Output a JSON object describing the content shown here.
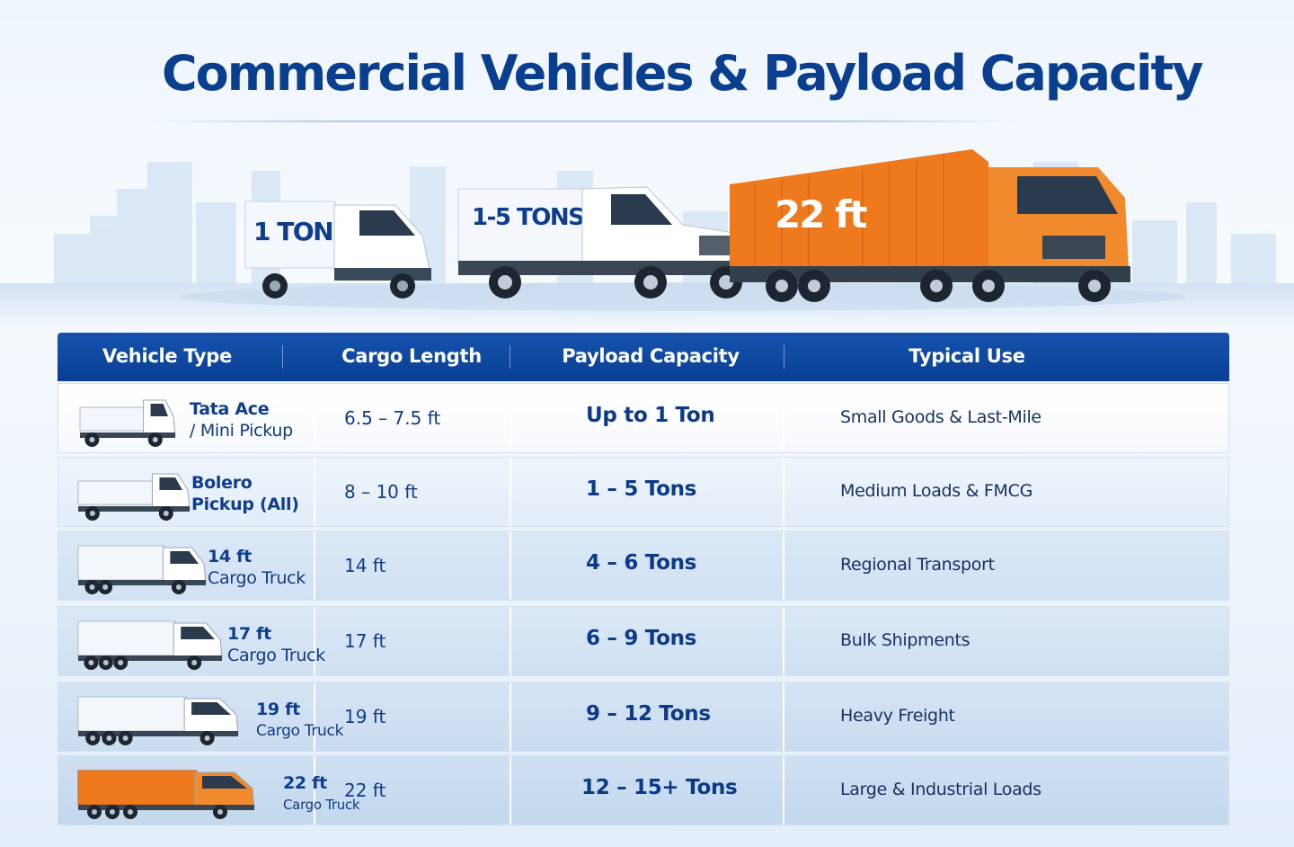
{
  "title": "Commercial Vehicles & Payload Capacity",
  "hero": {
    "badges": [
      "1 TON",
      "1-5 TONS",
      "22 ft"
    ]
  },
  "colors": {
    "brand_blue": "#0a3f8f",
    "truck_orange": "#ef7a1e",
    "row_tint": "#d6e5f5"
  },
  "table": {
    "headers": [
      "Vehicle Type",
      "Cargo Length",
      "Payload Capacity",
      "Typical Use"
    ],
    "rows": [
      {
        "icon": "mini-pickup-icon",
        "name_line1": "Tata Ace",
        "name_line2": "/ Mini Pickup",
        "length": "6.5 – 7.5 ft",
        "capacity": "Up to 1 Ton",
        "use": "Small Goods & Last-Mile"
      },
      {
        "icon": "pickup-icon",
        "name_line1": "Bolero",
        "name_line2": "Pickup (All)",
        "length": "8 – 10 ft",
        "capacity": "1 – 5 Tons",
        "use": "Medium Loads & FMCG"
      },
      {
        "icon": "cargo-truck-icon",
        "name_line1": "14 ft",
        "name_line2": "Cargo Truck",
        "length": "14 ft",
        "capacity": "4 – 6 Tons",
        "use": "Regional Transport"
      },
      {
        "icon": "cargo-truck-icon",
        "name_line1": "17 ft",
        "name_line2": "Cargo Truck",
        "length": "17 ft",
        "capacity": "6 – 9 Tons",
        "use": "Bulk Shipments"
      },
      {
        "icon": "cargo-truck-icon",
        "name_line1": "19 ft",
        "name_line2": "Cargo Truck",
        "length": "19 ft",
        "capacity": "9 – 12 Tons",
        "use": "Heavy Freight"
      },
      {
        "icon": "container-truck-icon",
        "name_line1": "22 ft",
        "name_line2": "Cargo Truck",
        "length": "22 ft",
        "capacity": "12 – 15+ Tons",
        "use": "Large & Industrial Loads"
      }
    ]
  }
}
